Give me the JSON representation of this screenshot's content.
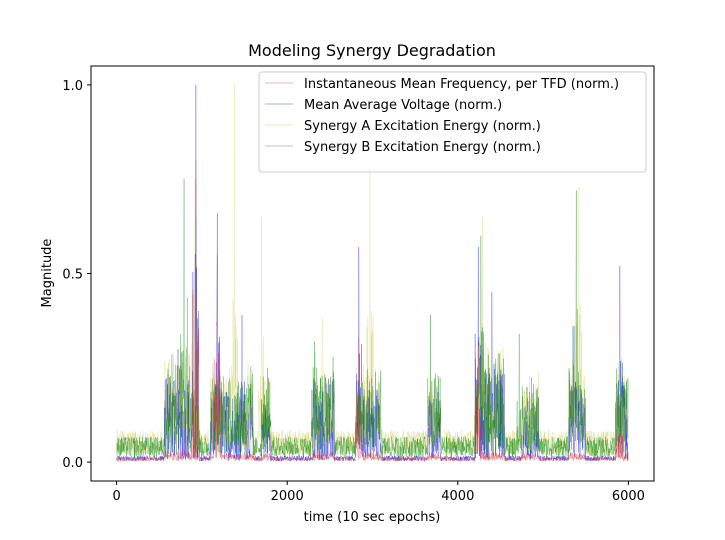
{
  "chart_data": {
    "type": "line",
    "title": "Modeling Synergy Degradation",
    "xlabel": "time (10 sec epochs)",
    "ylabel": "Magnitude",
    "xlim": [
      -300,
      6300
    ],
    "ylim": [
      -0.05,
      1.05
    ],
    "x_ticks": [
      0,
      2000,
      4000,
      6000
    ],
    "x_tick_labels": [
      "0",
      "2000",
      "4000",
      "6000"
    ],
    "y_ticks": [
      0.0,
      0.5,
      1.0
    ],
    "y_tick_labels": [
      "0.0",
      "0.5",
      "1.0"
    ],
    "n_points": 6000,
    "grid": false,
    "legend_position": "top-right",
    "series": [
      {
        "name": "Instantaneous Mean Frequency, per TFD (norm.)",
        "color": "#d62728",
        "baseline": 0.008,
        "peaks": [
          [
            930,
            0.8
          ],
          [
            1180,
            0.55
          ],
          [
            2840,
            0.33
          ],
          [
            4240,
            0.32
          ],
          [
            5900,
            0.15
          ],
          [
            600,
            0.03
          ],
          [
            1500,
            0.02
          ]
        ]
      },
      {
        "name": "Mean Average Voltage (norm.)",
        "color": "#0000ff",
        "baseline": 0.01,
        "peaks": [
          [
            930,
            1.0
          ],
          [
            1180,
            0.66
          ],
          [
            2840,
            0.57
          ],
          [
            4240,
            0.57
          ],
          [
            4400,
            0.45
          ],
          [
            5900,
            0.52
          ],
          [
            5350,
            0.36
          ],
          [
            720,
            0.3
          ],
          [
            1470,
            0.39
          ]
        ]
      },
      {
        "name": "Synergy A Excitation Energy (norm.)",
        "color": "#bcbd22",
        "baseline": 0.05,
        "peaks": [
          [
            1380,
            1.0
          ],
          [
            2970,
            0.79
          ],
          [
            1700,
            0.65
          ],
          [
            4290,
            0.65
          ],
          [
            5420,
            0.73
          ],
          [
            920,
            0.75
          ],
          [
            2410,
            0.38
          ]
        ]
      },
      {
        "name": "Synergy B Excitation Energy (norm.)",
        "color": "#008000",
        "baseline": 0.04,
        "peaks": [
          [
            790,
            0.75
          ],
          [
            930,
            0.65
          ],
          [
            3680,
            0.39
          ],
          [
            4270,
            0.6
          ],
          [
            4720,
            0.34
          ],
          [
            5390,
            0.72
          ],
          [
            1770,
            0.25
          ],
          [
            2320,
            0.32
          ]
        ]
      }
    ]
  }
}
